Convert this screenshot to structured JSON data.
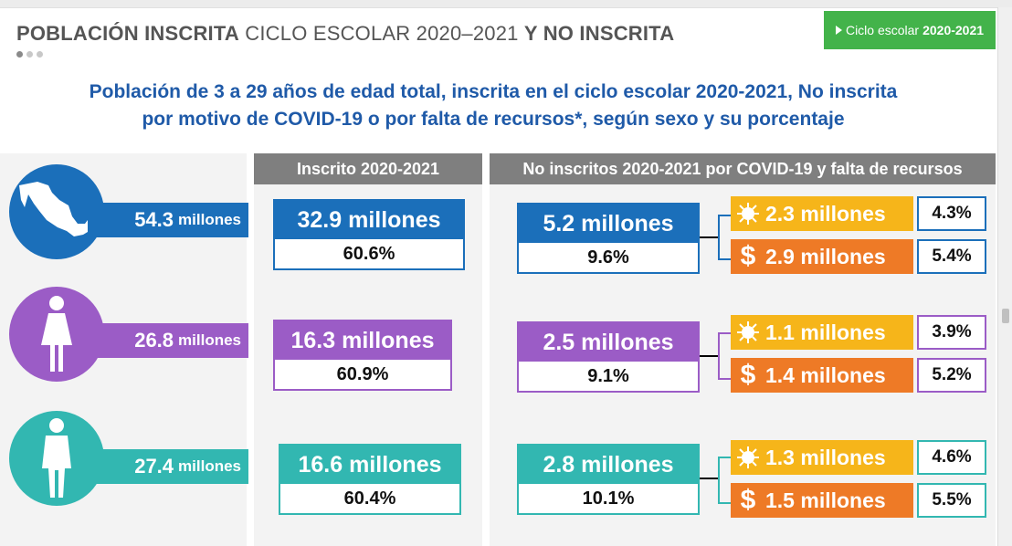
{
  "header": {
    "title_bold_1": "POBLACIÓN INSCRITA",
    "title_regular": "CICLO ESCOLAR 2020–2021",
    "title_bold_2": "Y NO INSCRITA"
  },
  "badge": {
    "prefix": "Ciclo escolar",
    "year": "2020-2021"
  },
  "subtitle": {
    "line1": "Población de 3 a 29 años de edad total, inscrita en el ciclo escolar 2020-2021, No inscrita",
    "line2": "por motivo de COVID-19 o por falta de recursos*, según sexo y su porcentaje"
  },
  "columns": {
    "enrolled": "Inscrito 2020-2021",
    "not_enrolled": "No inscritos 2020-2021 por COVID-19 y falta de recursos"
  },
  "rows": [
    {
      "group": "total",
      "color": "#1b6fba",
      "total_value": "54.3",
      "total_unit": "millones",
      "enrolled_value": "32.9 millones",
      "enrolled_pct": "60.6%",
      "not_enrolled_value": "5.2 millones",
      "not_enrolled_pct": "9.6%",
      "covid_value": "2.3 millones",
      "covid_pct": "4.3%",
      "resources_value": "2.9 millones",
      "resources_pct": "5.4%"
    },
    {
      "group": "mujeres",
      "color": "#9b5cc6",
      "total_value": "26.8",
      "total_unit": "millones",
      "enrolled_value": "16.3 millones",
      "enrolled_pct": "60.9%",
      "not_enrolled_value": "2.5 millones",
      "not_enrolled_pct": "9.1%",
      "covid_value": "1.1 millones",
      "covid_pct": "3.9%",
      "resources_value": "1.4 millones",
      "resources_pct": "5.2%"
    },
    {
      "group": "hombres",
      "color": "#32b7b1",
      "total_value": "27.4",
      "total_unit": "millones",
      "enrolled_value": "16.6 millones",
      "enrolled_pct": "60.4%",
      "not_enrolled_value": "2.8 millones",
      "not_enrolled_pct": "10.1%",
      "covid_value": "1.3 millones",
      "covid_pct": "4.6%",
      "resources_value": "1.5 millones",
      "resources_pct": "5.5%"
    }
  ],
  "icons": {
    "total": "mexico-map-icon",
    "mujeres": "woman-icon",
    "hombres": "man-icon",
    "covid": "virus-icon",
    "resources": "dollar-icon",
    "dollar_symbol": "$"
  },
  "colors": {
    "covid": "#f6b51a",
    "resources": "#ee7a26",
    "badge": "#43b34a",
    "subtitle": "#1f5aa8",
    "column_header": "#7f7f7f"
  }
}
